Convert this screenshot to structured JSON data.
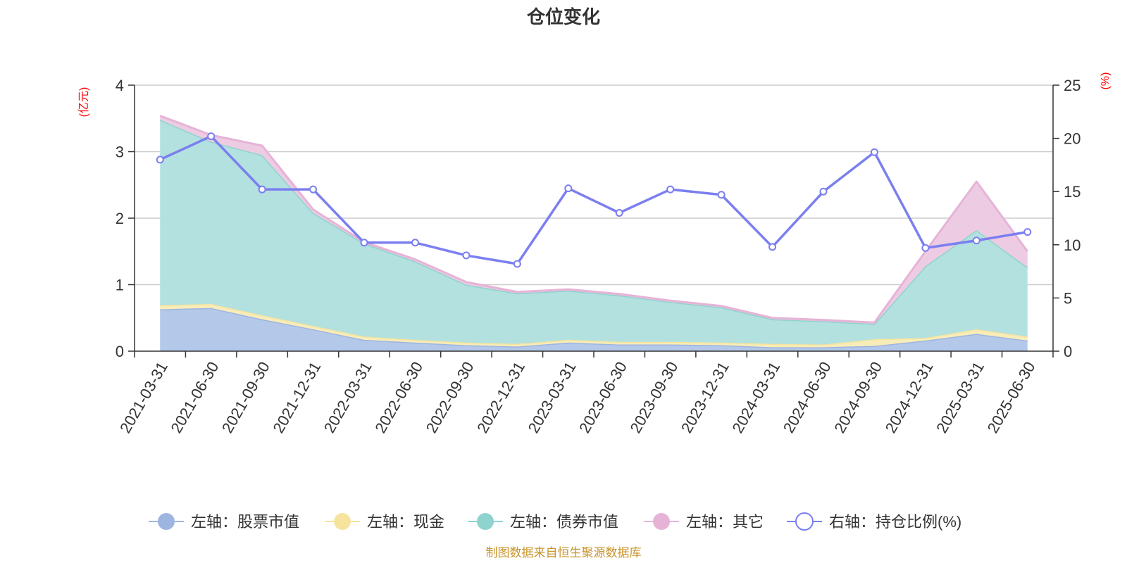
{
  "chart_data": {
    "type": "area",
    "title": "仓位变化",
    "left_axis_unit": "(亿元)",
    "right_axis_unit": "(%)",
    "x": [
      "2021-03-31",
      "2021-06-30",
      "2021-09-30",
      "2021-12-31",
      "2022-03-31",
      "2022-06-30",
      "2022-09-30",
      "2022-12-31",
      "2023-03-31",
      "2023-06-30",
      "2023-09-30",
      "2023-12-31",
      "2024-03-31",
      "2024-06-30",
      "2024-09-30",
      "2024-12-31",
      "2025-03-31",
      "2025-06-30"
    ],
    "left_ylim": [
      0,
      4
    ],
    "left_yticks": [
      0,
      1,
      2,
      3,
      4
    ],
    "right_ylim": [
      0,
      25
    ],
    "right_yticks": [
      0,
      5,
      10,
      15,
      20,
      25
    ],
    "grid": true,
    "legend_position": "bottom",
    "stacked_series": [
      {
        "name": "左轴：股票市值",
        "axis": "left",
        "color": "#9db5e0",
        "fill": "#b4c8ea",
        "values": [
          0.63,
          0.65,
          0.48,
          0.33,
          0.17,
          0.13,
          0.09,
          0.07,
          0.13,
          0.1,
          0.1,
          0.09,
          0.06,
          0.06,
          0.08,
          0.16,
          0.26,
          0.16
        ]
      },
      {
        "name": "左轴：现金",
        "axis": "left",
        "color": "#f6e49e",
        "fill": "#f8ecb8",
        "values": [
          0.06,
          0.06,
          0.06,
          0.05,
          0.05,
          0.04,
          0.04,
          0.04,
          0.04,
          0.04,
          0.04,
          0.04,
          0.05,
          0.04,
          0.1,
          0.04,
          0.07,
          0.06
        ]
      },
      {
        "name": "左轴：债券市值",
        "axis": "left",
        "color": "#8fd3cf",
        "fill": "#b3e1df",
        "values": [
          2.79,
          2.44,
          2.41,
          1.7,
          1.4,
          1.18,
          0.87,
          0.76,
          0.74,
          0.7,
          0.6,
          0.53,
          0.37,
          0.35,
          0.23,
          1.08,
          1.49,
          1.04
        ]
      },
      {
        "name": "左轴：其它",
        "axis": "left",
        "color": "#e6b3d7",
        "fill": "#edcce3",
        "values": [
          0.06,
          0.1,
          0.14,
          0.05,
          0.02,
          0.03,
          0.04,
          0.02,
          0.02,
          0.02,
          0.02,
          0.02,
          0.02,
          0.02,
          0.02,
          0.22,
          0.73,
          0.24
        ]
      }
    ],
    "line_series": {
      "name": "右轴：持仓比例(%)",
      "axis": "right",
      "color": "#7b7fef",
      "values": [
        18.0,
        20.2,
        15.2,
        15.2,
        10.2,
        10.2,
        9.0,
        8.2,
        15.3,
        13.0,
        15.2,
        14.7,
        9.8,
        15.0,
        18.7,
        9.7,
        10.4,
        11.2
      ]
    }
  },
  "footer": {
    "credit": "制图数据来自恒生聚源数据库"
  }
}
